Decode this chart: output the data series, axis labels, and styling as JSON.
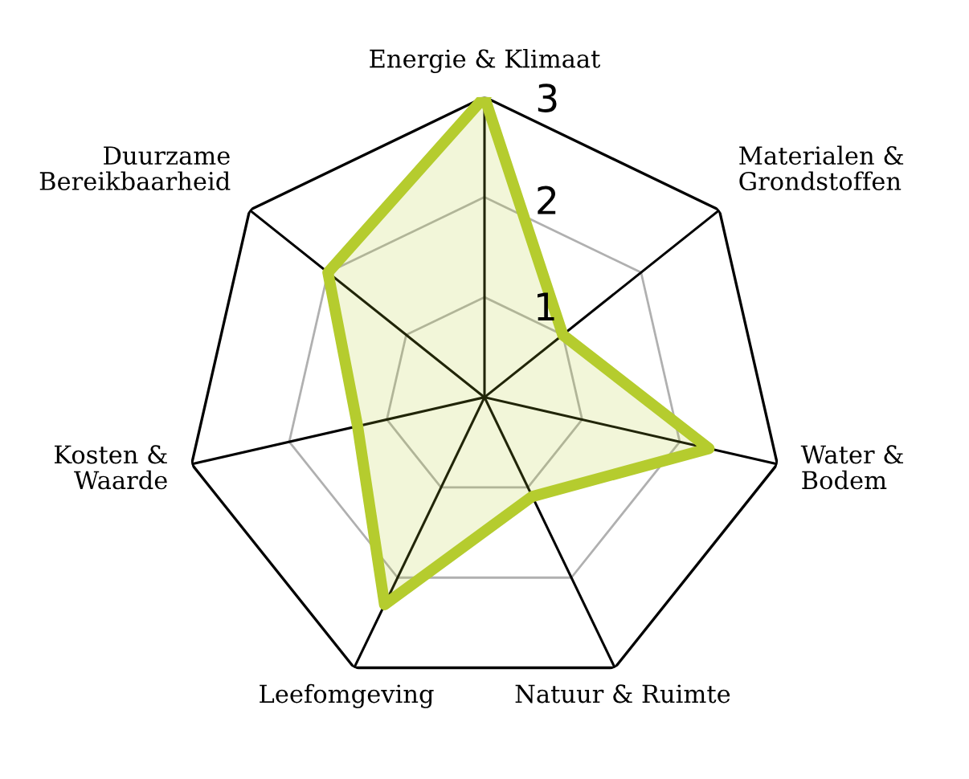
{
  "chart_data": {
    "type": "radar",
    "categories": [
      "Energie & Klimaat",
      "Materialen &\nGrondstoffen",
      "Water &\nBodem",
      "Natuur & Ruimte",
      "Leefomgeving",
      "Kosten &\nWaarde",
      "Duurzame\nBereikbaarheid"
    ],
    "series": [
      {
        "color": "#b5cc2e",
        "values": [
          3,
          1,
          2.3,
          1.1,
          2.3,
          1.3,
          2
        ]
      }
    ],
    "ylim": [
      0,
      3
    ],
    "yticks": [
      1,
      2,
      3
    ],
    "grid": true,
    "legend": false,
    "marker": "none",
    "line_style": "solid"
  }
}
